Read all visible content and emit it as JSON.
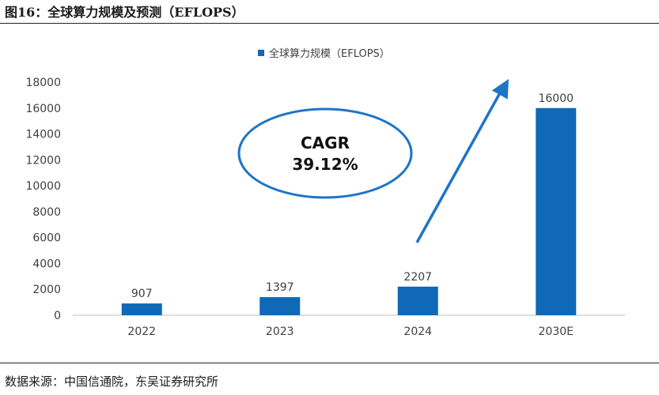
{
  "figure": {
    "title": "图16：全球算力规模及预测（EFLOPS）",
    "source": "数据来源：中国信通院，东吴证券研究所"
  },
  "chart_data": {
    "type": "bar",
    "categories": [
      "2022",
      "2023",
      "2024",
      "2030E"
    ],
    "series": [
      {
        "name": "全球算力规模（EFLOPS）",
        "values": [
          907,
          1397,
          2207,
          16000
        ]
      }
    ],
    "ylim": [
      0,
      18000
    ],
    "yticks": [
      0,
      2000,
      4000,
      6000,
      8000,
      10000,
      12000,
      14000,
      16000,
      18000
    ],
    "data_labels": [
      "907",
      "1397",
      "2207",
      "16000"
    ],
    "legend_position": "top-center",
    "grid": false,
    "annotation": {
      "line1": "CAGR",
      "line2": "39.12%"
    },
    "colors": {
      "bar": "#0f68b8",
      "annotation": "#1e74c8",
      "text": "#404040",
      "axis": "#bfbfbf"
    }
  }
}
